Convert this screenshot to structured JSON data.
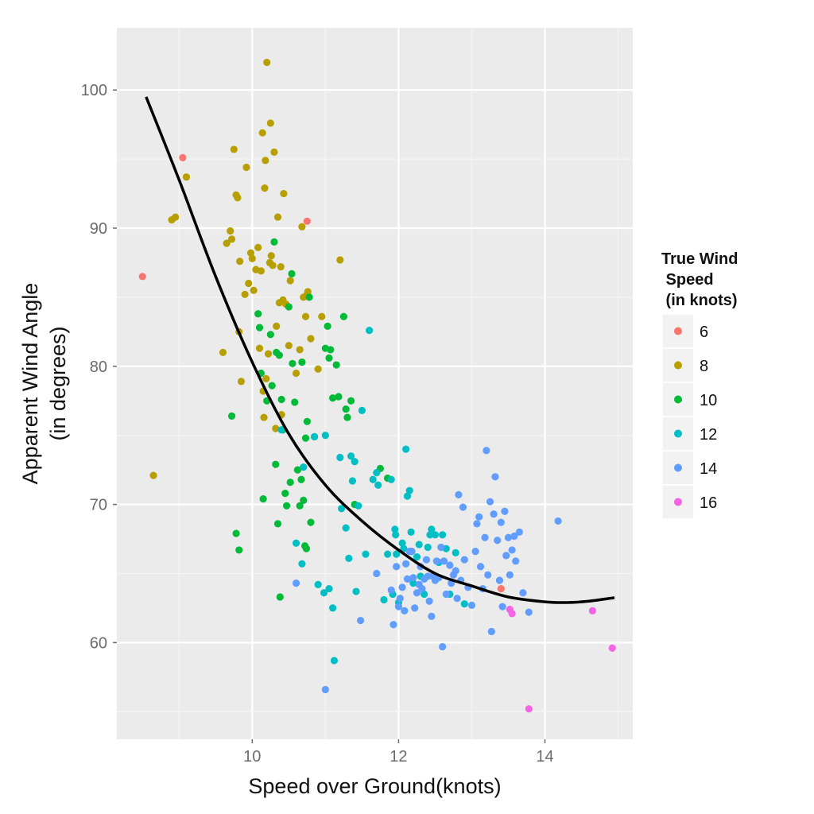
{
  "chart_data": {
    "type": "scatter",
    "title": "",
    "xlabel": "Speed over Ground(knots)",
    "ylabel_lines": [
      "Apparent Wind Angle",
      "(in degrees)"
    ],
    "xlim": [
      8.15,
      15.2
    ],
    "ylim": [
      53.0,
      104.5
    ],
    "x_ticks": [
      10,
      12,
      14
    ],
    "y_ticks": [
      60,
      70,
      80,
      90,
      100
    ],
    "grid": true,
    "legend": {
      "title_lines": [
        "True Wind",
        " Speed",
        " (in knots)"
      ],
      "placement": "right",
      "entries": [
        {
          "label": "6",
          "color": "#F8766D"
        },
        {
          "label": "8",
          "color": "#B79F00"
        },
        {
          "label": "10",
          "color": "#00BA38"
        },
        {
          "label": "12",
          "color": "#00BFC4"
        },
        {
          "label": "14",
          "color": "#619CFF"
        },
        {
          "label": "16",
          "color": "#F564E3"
        }
      ]
    },
    "series": [
      {
        "name": "6",
        "points": [
          [
            8.5,
            86.5
          ],
          [
            9.05,
            95.1
          ],
          [
            10.75,
            90.5
          ],
          [
            13.4,
            63.9
          ]
        ]
      },
      {
        "name": "8",
        "points": [
          [
            8.65,
            72.1
          ],
          [
            8.9,
            90.6
          ],
          [
            8.95,
            90.8
          ],
          [
            9.1,
            93.7
          ],
          [
            9.6,
            81.0
          ],
          [
            9.65,
            88.9
          ],
          [
            9.7,
            89.8
          ],
          [
            9.72,
            89.2
          ],
          [
            9.75,
            95.7
          ],
          [
            9.78,
            92.4
          ],
          [
            9.8,
            92.2
          ],
          [
            9.82,
            82.5
          ],
          [
            9.83,
            87.6
          ],
          [
            9.85,
            78.9
          ],
          [
            9.9,
            85.2
          ],
          [
            9.92,
            94.4
          ],
          [
            9.95,
            86.0
          ],
          [
            9.98,
            88.2
          ],
          [
            10.0,
            87.8
          ],
          [
            10.02,
            85.5
          ],
          [
            10.05,
            87.0
          ],
          [
            10.08,
            88.6
          ],
          [
            10.1,
            81.3
          ],
          [
            10.12,
            86.9
          ],
          [
            10.14,
            96.9
          ],
          [
            10.15,
            78.2
          ],
          [
            10.16,
            76.3
          ],
          [
            10.17,
            92.9
          ],
          [
            10.18,
            94.9
          ],
          [
            10.19,
            79.1
          ],
          [
            10.2,
            102.0
          ],
          [
            10.22,
            80.9
          ],
          [
            10.24,
            87.5
          ],
          [
            10.25,
            97.6
          ],
          [
            10.26,
            88.0
          ],
          [
            10.28,
            87.3
          ],
          [
            10.3,
            95.5
          ],
          [
            10.32,
            75.5
          ],
          [
            10.33,
            82.9
          ],
          [
            10.35,
            90.8
          ],
          [
            10.37,
            84.6
          ],
          [
            10.39,
            87.2
          ],
          [
            10.4,
            76.5
          ],
          [
            10.42,
            84.8
          ],
          [
            10.43,
            92.5
          ],
          [
            10.46,
            84.5
          ],
          [
            10.5,
            81.5
          ],
          [
            10.52,
            86.2
          ],
          [
            10.6,
            79.5
          ],
          [
            10.65,
            81.2
          ],
          [
            10.68,
            90.1
          ],
          [
            10.7,
            85.0
          ],
          [
            10.73,
            83.6
          ],
          [
            10.75,
            85.2
          ],
          [
            10.76,
            85.4
          ],
          [
            10.8,
            82.0
          ],
          [
            10.9,
            79.8
          ],
          [
            10.95,
            83.6
          ],
          [
            11.2,
            87.7
          ]
        ]
      },
      {
        "name": "10",
        "points": [
          [
            9.72,
            76.4
          ],
          [
            9.78,
            67.9
          ],
          [
            9.82,
            66.7
          ],
          [
            10.08,
            83.8
          ],
          [
            10.1,
            82.8
          ],
          [
            10.12,
            79.5
          ],
          [
            10.15,
            70.4
          ],
          [
            10.2,
            77.5
          ],
          [
            10.25,
            82.3
          ],
          [
            10.27,
            78.6
          ],
          [
            10.3,
            89.0
          ],
          [
            10.32,
            72.9
          ],
          [
            10.33,
            81.0
          ],
          [
            10.35,
            68.6
          ],
          [
            10.37,
            80.8
          ],
          [
            10.38,
            63.3
          ],
          [
            10.4,
            77.6
          ],
          [
            10.42,
            75.4
          ],
          [
            10.45,
            70.8
          ],
          [
            10.47,
            69.9
          ],
          [
            10.5,
            84.3
          ],
          [
            10.52,
            71.6
          ],
          [
            10.54,
            86.7
          ],
          [
            10.55,
            80.2
          ],
          [
            10.58,
            77.4
          ],
          [
            10.62,
            72.5
          ],
          [
            10.65,
            69.9
          ],
          [
            10.67,
            71.8
          ],
          [
            10.68,
            80.3
          ],
          [
            10.7,
            70.3
          ],
          [
            10.72,
            67.0
          ],
          [
            10.73,
            74.8
          ],
          [
            10.74,
            66.8
          ],
          [
            10.75,
            76.0
          ],
          [
            10.78,
            85.0
          ],
          [
            10.8,
            68.7
          ],
          [
            10.85,
            74.9
          ],
          [
            11.0,
            81.3
          ],
          [
            11.03,
            82.9
          ],
          [
            11.05,
            80.6
          ],
          [
            11.07,
            81.2
          ],
          [
            11.1,
            77.7
          ],
          [
            11.15,
            80.1
          ],
          [
            11.18,
            77.8
          ],
          [
            11.25,
            83.6
          ],
          [
            11.28,
            76.9
          ],
          [
            11.3,
            76.3
          ],
          [
            11.35,
            77.5
          ],
          [
            11.4,
            70.0
          ],
          [
            11.75,
            72.6
          ],
          [
            11.85,
            71.9
          ]
        ]
      },
      {
        "name": "12",
        "points": [
          [
            10.4,
            75.4
          ],
          [
            10.6,
            67.2
          ],
          [
            10.68,
            65.7
          ],
          [
            10.7,
            72.7
          ],
          [
            10.85,
            74.9
          ],
          [
            10.9,
            64.2
          ],
          [
            10.98,
            63.6
          ],
          [
            11.0,
            75.0
          ],
          [
            11.05,
            63.9
          ],
          [
            11.1,
            62.5
          ],
          [
            11.12,
            58.7
          ],
          [
            11.2,
            73.4
          ],
          [
            11.22,
            69.7
          ],
          [
            11.28,
            68.3
          ],
          [
            11.32,
            66.1
          ],
          [
            11.35,
            73.5
          ],
          [
            11.37,
            71.7
          ],
          [
            11.4,
            73.1
          ],
          [
            11.42,
            63.7
          ],
          [
            11.45,
            69.9
          ],
          [
            11.5,
            76.8
          ],
          [
            11.55,
            66.4
          ],
          [
            11.6,
            82.6
          ],
          [
            11.65,
            71.8
          ],
          [
            11.7,
            72.3
          ],
          [
            11.72,
            71.4
          ],
          [
            11.8,
            63.1
          ],
          [
            11.85,
            66.4
          ],
          [
            11.9,
            71.8
          ],
          [
            11.92,
            63.5
          ],
          [
            11.95,
            68.2
          ],
          [
            11.96,
            67.8
          ],
          [
            11.97,
            66.4
          ],
          [
            12.0,
            62.9
          ],
          [
            12.05,
            67.2
          ],
          [
            12.07,
            66.8
          ],
          [
            12.1,
            74.0
          ],
          [
            12.12,
            70.6
          ],
          [
            12.15,
            71.0
          ],
          [
            12.17,
            68.0
          ],
          [
            12.18,
            66.6
          ],
          [
            12.2,
            64.3
          ],
          [
            12.25,
            66.2
          ],
          [
            12.28,
            67.1
          ],
          [
            12.3,
            64.8
          ],
          [
            12.35,
            63.5
          ],
          [
            12.4,
            66.9
          ],
          [
            12.43,
            67.8
          ],
          [
            12.45,
            68.2
          ],
          [
            12.5,
            67.8
          ],
          [
            12.55,
            65.8
          ],
          [
            12.6,
            67.8
          ],
          [
            12.65,
            66.8
          ],
          [
            12.7,
            63.5
          ],
          [
            12.78,
            66.5
          ],
          [
            12.9,
            62.8
          ]
        ]
      },
      {
        "name": "14",
        "points": [
          [
            10.6,
            64.3
          ],
          [
            11.0,
            56.6
          ],
          [
            11.48,
            61.6
          ],
          [
            11.7,
            65.0
          ],
          [
            11.9,
            63.8
          ],
          [
            11.93,
            61.3
          ],
          [
            11.97,
            65.5
          ],
          [
            12.0,
            62.6
          ],
          [
            12.02,
            63.2
          ],
          [
            12.05,
            64.0
          ],
          [
            12.08,
            62.3
          ],
          [
            12.1,
            65.7
          ],
          [
            12.12,
            64.6
          ],
          [
            12.15,
            66.6
          ],
          [
            12.18,
            66.6
          ],
          [
            12.2,
            64.7
          ],
          [
            12.22,
            62.5
          ],
          [
            12.25,
            63.6
          ],
          [
            12.28,
            64.2
          ],
          [
            12.3,
            65.5
          ],
          [
            12.32,
            63.9
          ],
          [
            12.35,
            64.6
          ],
          [
            12.38,
            66.0
          ],
          [
            12.4,
            64.8
          ],
          [
            12.42,
            63.0
          ],
          [
            12.45,
            61.9
          ],
          [
            12.47,
            64.8
          ],
          [
            12.5,
            64.5
          ],
          [
            12.52,
            65.9
          ],
          [
            12.55,
            64.7
          ],
          [
            12.58,
            66.9
          ],
          [
            12.6,
            59.7
          ],
          [
            12.62,
            65.9
          ],
          [
            12.65,
            63.5
          ],
          [
            12.7,
            65.6
          ],
          [
            12.72,
            64.3
          ],
          [
            12.75,
            64.9
          ],
          [
            12.78,
            65.2
          ],
          [
            12.8,
            63.2
          ],
          [
            12.82,
            70.7
          ],
          [
            12.85,
            64.5
          ],
          [
            12.88,
            69.8
          ],
          [
            12.9,
            66.0
          ],
          [
            12.95,
            64.0
          ],
          [
            13.0,
            62.7
          ],
          [
            13.05,
            66.6
          ],
          [
            13.07,
            68.6
          ],
          [
            13.1,
            69.1
          ],
          [
            13.12,
            65.5
          ],
          [
            13.15,
            63.9
          ],
          [
            13.18,
            67.6
          ],
          [
            13.2,
            73.9
          ],
          [
            13.22,
            64.9
          ],
          [
            13.25,
            70.2
          ],
          [
            13.27,
            60.8
          ],
          [
            13.3,
            69.3
          ],
          [
            13.32,
            72.0
          ],
          [
            13.35,
            67.4
          ],
          [
            13.38,
            64.5
          ],
          [
            13.4,
            68.7
          ],
          [
            13.42,
            62.6
          ],
          [
            13.45,
            69.5
          ],
          [
            13.47,
            66.3
          ],
          [
            13.5,
            67.6
          ],
          [
            13.52,
            64.9
          ],
          [
            13.55,
            66.7
          ],
          [
            13.58,
            67.7
          ],
          [
            13.6,
            65.9
          ],
          [
            13.65,
            68.0
          ],
          [
            13.7,
            63.6
          ],
          [
            13.78,
            62.2
          ],
          [
            14.18,
            68.8
          ]
        ]
      },
      {
        "name": "16",
        "points": [
          [
            13.52,
            62.4
          ],
          [
            13.55,
            62.1
          ],
          [
            13.78,
            55.2
          ],
          [
            14.65,
            62.3
          ],
          [
            14.92,
            59.6
          ]
        ]
      }
    ],
    "fit_curve_points": [
      [
        8.55,
        99.5
      ],
      [
        9.0,
        93.5
      ],
      [
        9.5,
        86.5
      ],
      [
        10.0,
        80.3
      ],
      [
        10.5,
        75.1
      ],
      [
        11.0,
        71.4
      ],
      [
        11.5,
        68.8
      ],
      [
        12.0,
        66.7
      ],
      [
        12.5,
        65.0
      ],
      [
        13.0,
        64.1
      ],
      [
        13.5,
        63.3
      ],
      [
        14.0,
        62.95
      ],
      [
        14.3,
        62.9
      ],
      [
        14.6,
        63.0
      ],
      [
        14.95,
        63.25
      ]
    ]
  }
}
